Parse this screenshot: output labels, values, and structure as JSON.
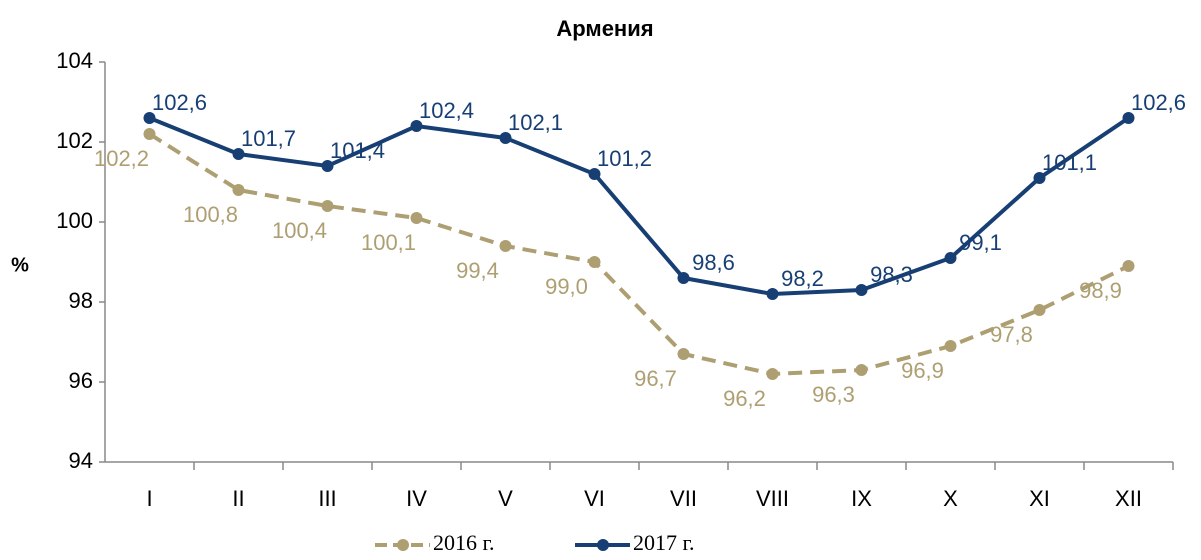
{
  "chart_data": {
    "type": "line",
    "title": "Армения",
    "y_label": "%",
    "categories": [
      "I",
      "II",
      "III",
      "IV",
      "V",
      "VI",
      "VII",
      "VIII",
      "IX",
      "X",
      "XI",
      "XII"
    ],
    "series": [
      {
        "name": "2016 г.",
        "color": "#ae9f72",
        "line_style": "dashed",
        "values": [
          102.2,
          100.8,
          100.4,
          100.1,
          99.4,
          99.0,
          96.7,
          96.2,
          96.3,
          96.9,
          97.8,
          98.9
        ],
        "value_labels": [
          "102,2",
          "100,8",
          "100,4",
          "100,1",
          "99,4",
          "99,0",
          "96,7",
          "96,2",
          "96,3",
          "96,9",
          "97,8",
          "98,9"
        ]
      },
      {
        "name": "2017 г.",
        "color": "#173f74",
        "line_style": "solid",
        "values": [
          102.6,
          101.7,
          101.4,
          102.4,
          102.1,
          101.2,
          98.6,
          98.2,
          98.3,
          99.1,
          101.1,
          102.6
        ],
        "value_labels": [
          "102,6",
          "101,7",
          "101,4",
          "102,4",
          "102,1",
          "101,2",
          "98,6",
          "98,2",
          "98,3",
          "99,1",
          "101,1",
          "102,6"
        ]
      }
    ],
    "ylim": [
      94,
      104
    ],
    "yticks": [
      94,
      96,
      98,
      100,
      102,
      104
    ],
    "grid": false,
    "legend": "bottom"
  }
}
